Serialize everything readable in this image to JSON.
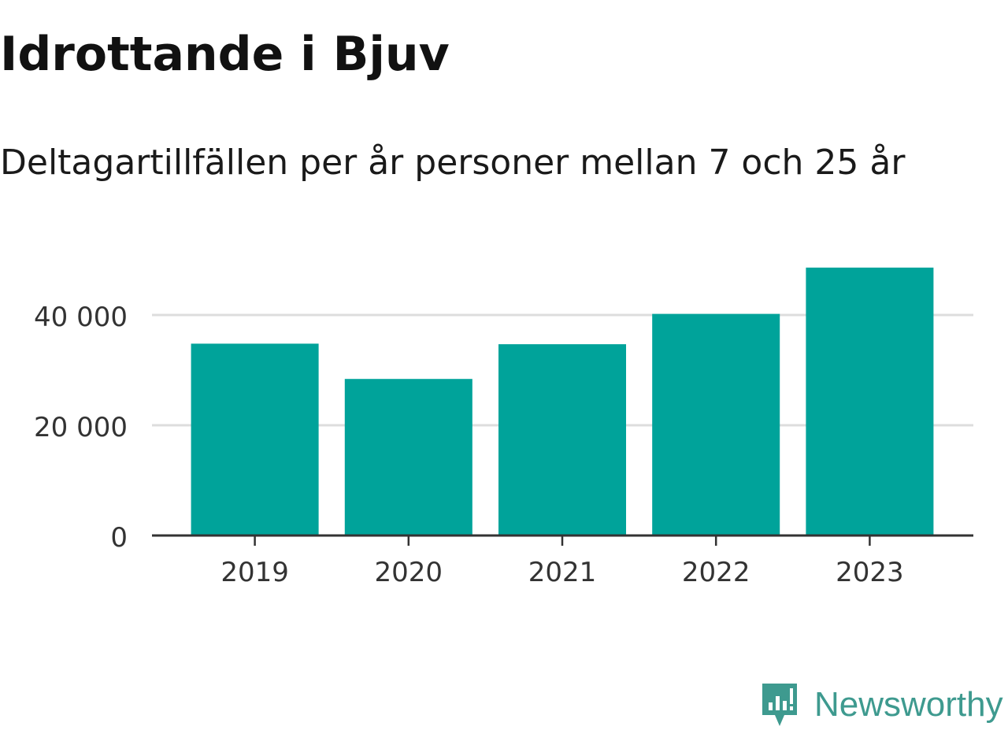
{
  "title": "Idrottande i Bjuv",
  "subtitle": "Deltagartillfällen per år personer mellan 7 och 25 år",
  "brand": {
    "name": "Newsworthy",
    "color": "#3e9a8f",
    "icon": "bar-chart-speech-bubble-icon"
  },
  "chart_data": {
    "type": "bar",
    "categories": [
      "2019",
      "2020",
      "2021",
      "2022",
      "2023"
    ],
    "values": [
      34800,
      28400,
      34700,
      40200,
      48600
    ],
    "ylim": [
      0,
      50000
    ],
    "yticks": [
      0,
      20000,
      40000
    ],
    "ytick_labels": [
      "0",
      "20 000",
      "40 000"
    ],
    "bar_color": "#00a39a",
    "grid": true,
    "grid_color": "#dddddd",
    "xlabel": "",
    "ylabel": ""
  }
}
